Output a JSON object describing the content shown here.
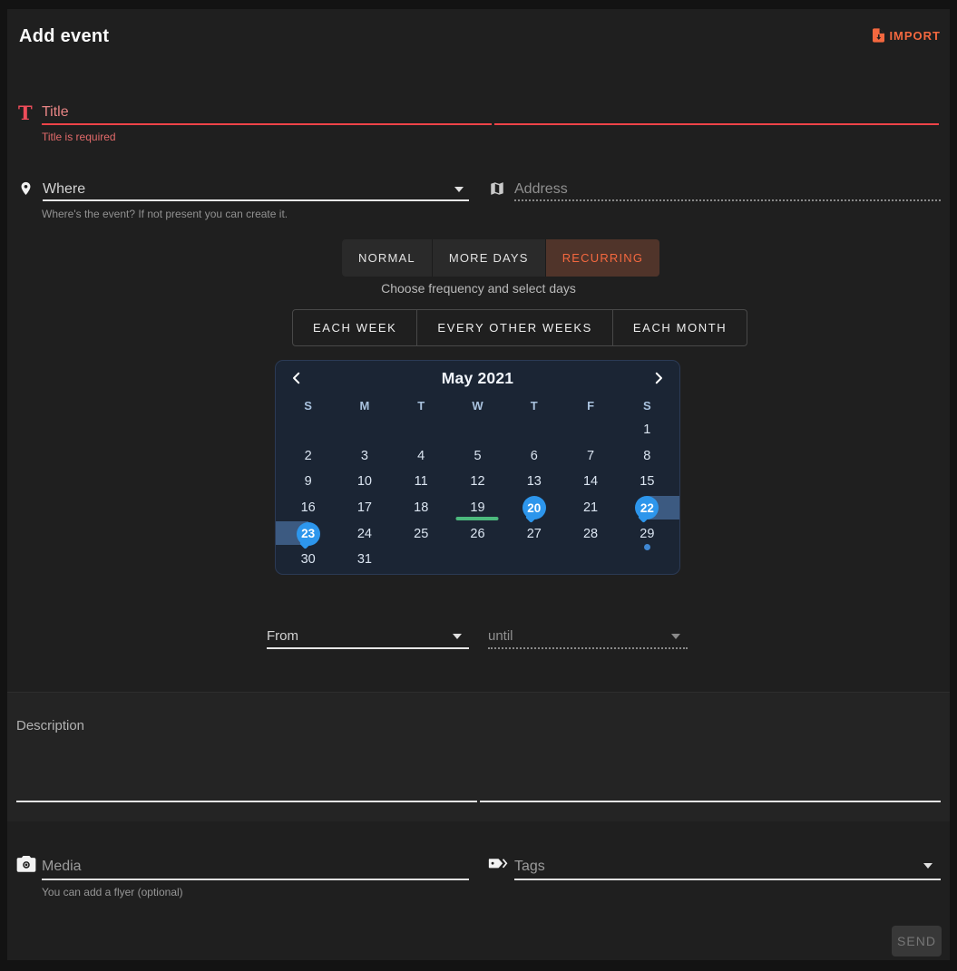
{
  "header": {
    "title": "Add event",
    "import_label": "IMPORT"
  },
  "title_field": {
    "icon_glyph": "T",
    "placeholder": "Title",
    "error": "Title is required"
  },
  "where_field": {
    "placeholder": "Where",
    "helper": "Where's the event? If not present you can create it."
  },
  "address_field": {
    "placeholder": "Address"
  },
  "tabs": {
    "items": [
      {
        "label": "NORMAL",
        "selected": false
      },
      {
        "label": "MORE DAYS",
        "selected": false
      },
      {
        "label": "RECURRING",
        "selected": true
      }
    ]
  },
  "frequency": {
    "hint": "Choose frequency and select days",
    "options": [
      "EACH WEEK",
      "EVERY OTHER WEEKS",
      "EACH MONTH"
    ]
  },
  "calendar": {
    "month_title": "May 2021",
    "weekday_headers": [
      "S",
      "M",
      "T",
      "W",
      "T",
      "F",
      "S"
    ],
    "weeks": [
      [
        "",
        "",
        "",
        "",
        "",
        "",
        "1"
      ],
      [
        "2",
        "3",
        "4",
        "5",
        "6",
        "7",
        "8"
      ],
      [
        "9",
        "10",
        "11",
        "12",
        "13",
        "14",
        "15"
      ],
      [
        "16",
        "17",
        "18",
        "19",
        "20",
        "21",
        "22"
      ],
      [
        "23",
        "24",
        "25",
        "26",
        "27",
        "28",
        "29"
      ],
      [
        "30",
        "31",
        "",
        "",
        "",
        "",
        ""
      ]
    ],
    "markers": {
      "selected_balloon_days": [
        "20",
        "22",
        "23"
      ],
      "range_band_right_days": [
        "22"
      ],
      "range_band_left_days": [
        "23"
      ],
      "green_underline_days": [
        "19"
      ],
      "dot_days": [
        "29"
      ]
    }
  },
  "time_fields": {
    "from_placeholder": "From",
    "until_placeholder": "until"
  },
  "description_field": {
    "placeholder": "Description"
  },
  "media_field": {
    "placeholder": "Media",
    "helper": "You can add a flyer (optional)"
  },
  "tags_field": {
    "placeholder": "Tags"
  },
  "send_button": {
    "label": "SEND"
  },
  "colors": {
    "accent_orange": "#f4683f",
    "error_red": "#ee4348",
    "selected_day_blue": "#2d96ec",
    "range_band_blue": "#3c5a81",
    "underline_green": "#4cb97d",
    "event_dot_blue": "#3f87d2",
    "calendar_bg": "#1b2534",
    "card_bg": "#1f1f1f"
  }
}
